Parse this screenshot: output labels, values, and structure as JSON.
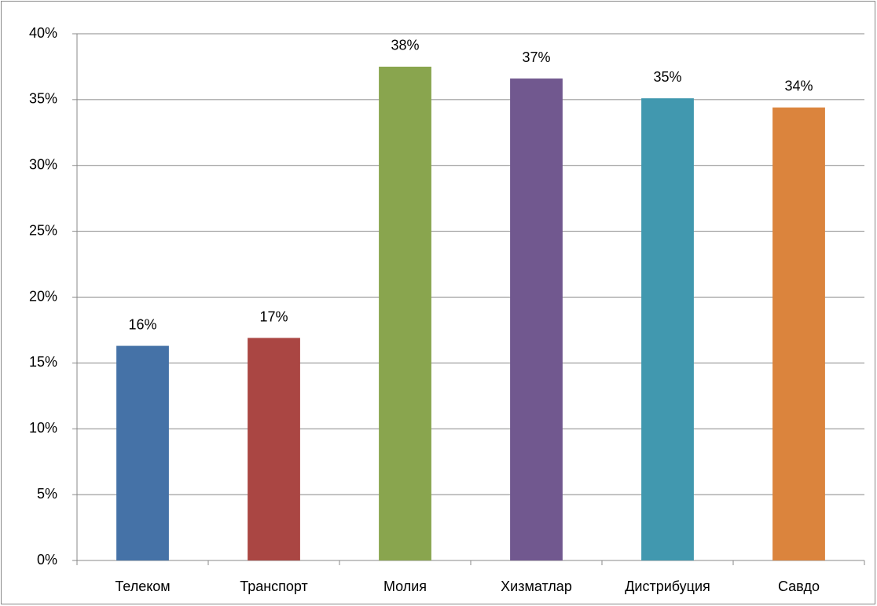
{
  "chart_data": {
    "type": "bar",
    "categories": [
      "Телеком",
      "Транспорт",
      "Молия",
      "Хизматлар",
      "Дистрибуция",
      "Савдо"
    ],
    "values": [
      16.3,
      16.9,
      37.5,
      36.6,
      35.1,
      34.4
    ],
    "value_labels": [
      "16%",
      "17%",
      "38%",
      "37%",
      "35%",
      "34%"
    ],
    "colors": [
      "#4572a7",
      "#aa4643",
      "#89a54e",
      "#71588f",
      "#4198af",
      "#db843d"
    ],
    "ylim": [
      0,
      40
    ],
    "yticks": [
      {
        "value": 0,
        "label": "0%"
      },
      {
        "value": 5,
        "label": "5%"
      },
      {
        "value": 10,
        "label": "10%"
      },
      {
        "value": 15,
        "label": "15%"
      },
      {
        "value": 20,
        "label": "20%"
      },
      {
        "value": 25,
        "label": "25%"
      },
      {
        "value": 30,
        "label": "30%"
      },
      {
        "value": 35,
        "label": "35%"
      },
      {
        "value": 40,
        "label": "40%"
      }
    ],
    "grid": true
  }
}
